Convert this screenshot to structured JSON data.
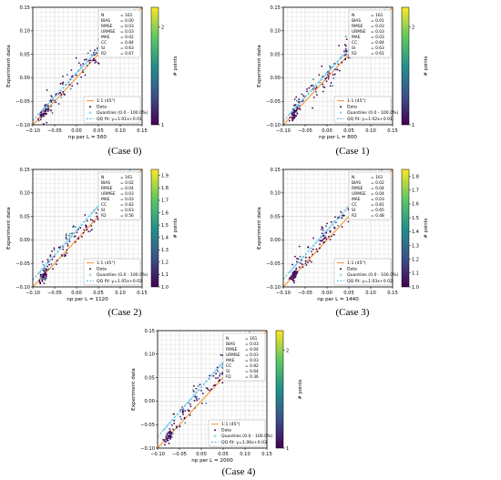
{
  "chart_data": [
    {
      "type": "scatter",
      "caption": "(Case 0)",
      "xlabel": "np per L = 560",
      "ylabel": "Experiment data",
      "colorbar_label": "# points",
      "xlim": [
        -0.1,
        0.15
      ],
      "ylim": [
        -0.1,
        0.15
      ],
      "xticks": [
        "−0.10",
        "−0.05",
        "0.00",
        "0.05",
        "0.10",
        "0.15"
      ],
      "yticks": [
        "−0.10",
        "−0.05",
        "0.00",
        "0.05",
        "0.10",
        "0.15"
      ],
      "colorbar_ticks": [
        "1",
        "2"
      ],
      "colorbar_range": [
        1,
        2.2
      ],
      "grid": true,
      "stats_labels": [
        "N",
        "BIAS",
        "RMSE",
        "URMSE",
        "MAE",
        "CC",
        "SI",
        "R2"
      ],
      "stats_values": [
        "= 161",
        "= 0.00",
        "= 0.03",
        "= 0.03",
        "= 0.02",
        "= 0.84",
        "= 0.63",
        "= 0.67"
      ],
      "legend": [
        "1:1 (45°)",
        "Data",
        "Quantiles (0.0 - 100.0%)",
        "QQ fit: y=1.01x+0.01"
      ],
      "qq_fit": {
        "slope": 1.01,
        "intercept": 0.01
      }
    },
    {
      "type": "scatter",
      "caption": "(Case 1)",
      "xlabel": "np per L = 800",
      "ylabel": "Experiment data",
      "colorbar_label": "# points",
      "xlim": [
        -0.1,
        0.15
      ],
      "ylim": [
        -0.1,
        0.15
      ],
      "xticks": [
        "−0.10",
        "−0.05",
        "0.00",
        "0.05",
        "0.10",
        "0.15"
      ],
      "yticks": [
        "−0.10",
        "−0.05",
        "0.00",
        "0.05",
        "0.10",
        "0.15"
      ],
      "colorbar_ticks": [
        "1",
        "2"
      ],
      "colorbar_range": [
        1,
        2.2
      ],
      "grid": true,
      "stats_labels": [
        "N",
        "BIAS",
        "RMSE",
        "URMSE",
        "MAE",
        "CC",
        "SI",
        "R2"
      ],
      "stats_values": [
        "= 161",
        "= 0.01",
        "= 0.03",
        "= 0.03",
        "= 0.03",
        "= 0.84",
        "= 0.63",
        "= 0.61"
      ],
      "legend": [
        "1:1 (45°)",
        "Data",
        "Quantiles (0.0 - 100.0%)",
        "QQ fit: y=1.02x+0.01"
      ],
      "qq_fit": {
        "slope": 1.02,
        "intercept": 0.01
      }
    },
    {
      "type": "scatter",
      "caption": "(Case 2)",
      "xlabel": "np per L = 1120",
      "ylabel": "Experiment data",
      "colorbar_label": "# points",
      "xlim": [
        -0.1,
        0.15
      ],
      "ylim": [
        -0.1,
        0.15
      ],
      "xticks": [
        "−0.10",
        "−0.05",
        "0.00",
        "0.05",
        "0.10",
        "0.15"
      ],
      "yticks": [
        "−0.10",
        "−0.05",
        "0.00",
        "0.05",
        "0.10",
        "0.15"
      ],
      "colorbar_ticks": [
        "1.0",
        "1.1",
        "1.2",
        "1.3",
        "1.4",
        "1.5",
        "1.6",
        "1.7",
        "1.8",
        "1.9"
      ],
      "colorbar_range": [
        1,
        1.95
      ],
      "grid": true,
      "stats_labels": [
        "N",
        "BIAS",
        "RMSE",
        "URMSE",
        "MAE",
        "CC",
        "SI",
        "R2"
      ],
      "stats_values": [
        "= 161",
        "= 0.02",
        "= 0.04",
        "= 0.03",
        "= 0.03",
        "= 0.83",
        "= 0.63",
        "= 0.56"
      ],
      "legend": [
        "1:1 (45°)",
        "Data",
        "Quantiles (0.0 - 100.0%)",
        "QQ fit: y=1.05x+0.02"
      ],
      "qq_fit": {
        "slope": 1.05,
        "intercept": 0.02
      }
    },
    {
      "type": "scatter",
      "caption": "(Case 3)",
      "xlabel": "np per L = 1440",
      "ylabel": "Experiment data",
      "colorbar_label": "# points",
      "xlim": [
        -0.1,
        0.15
      ],
      "ylim": [
        -0.1,
        0.15
      ],
      "xticks": [
        "−0.10",
        "−0.05",
        "0.00",
        "0.05",
        "0.10",
        "0.15"
      ],
      "yticks": [
        "−0.10",
        "−0.05",
        "0.00",
        "0.05",
        "0.10",
        "0.15"
      ],
      "colorbar_ticks": [
        "1.0",
        "1.1",
        "1.2",
        "1.3",
        "1.4",
        "1.5",
        "1.6",
        "1.7",
        "1.8"
      ],
      "colorbar_range": [
        1,
        1.85
      ],
      "grid": true,
      "stats_labels": [
        "N",
        "BIAS",
        "RMSE",
        "URMSE",
        "MAE",
        "CC",
        "SI",
        "R2"
      ],
      "stats_values": [
        "= 161",
        "= 0.02",
        "= 0.04",
        "= 0.04",
        "= 0.03",
        "= 0.81",
        "= 0.65",
        "= 0.48"
      ],
      "legend": [
        "1:1 (45°)",
        "Data",
        "Quantiles (0.0 - 100.0%)",
        "QQ fit: y=1.03x+0.02"
      ],
      "qq_fit": {
        "slope": 1.03,
        "intercept": 0.02
      }
    },
    {
      "type": "scatter",
      "caption": "(Case 4)",
      "xlabel": "np per L = 2000",
      "ylabel": "Experiment data",
      "colorbar_label": "# points",
      "xlim": [
        -0.1,
        0.15
      ],
      "ylim": [
        -0.1,
        0.15
      ],
      "xticks": [
        "−0.10",
        "−0.05",
        "0.00",
        "0.05",
        "0.10",
        "0.15"
      ],
      "yticks": [
        "−0.10",
        "−0.05",
        "0.00",
        "0.05",
        "0.10",
        "0.15"
      ],
      "colorbar_ticks": [
        "1",
        "2"
      ],
      "colorbar_range": [
        1,
        2.2
      ],
      "grid": true,
      "stats_labels": [
        "N",
        "BIAS",
        "RMSE",
        "URMSE",
        "MAE",
        "CC",
        "SI",
        "R2"
      ],
      "stats_values": [
        "= 161",
        "= 0.03",
        "= 0.04",
        "= 0.03",
        "= 0.03",
        "= 0.82",
        "= 0.64",
        "= 0.36"
      ],
      "legend": [
        "1:1 (45°)",
        "Data",
        "Quantiles (0.0 - 100.0%)",
        "QQ fit: y=1.06x+0.03"
      ],
      "qq_fit": {
        "slope": 1.06,
        "intercept": 0.03
      }
    }
  ],
  "colors": {
    "one_to_one": "#f5a050",
    "quantiles": "#7fd0ee",
    "qq_fit": "#4fb4d9",
    "grid": "#d9d9d9",
    "viridis": [
      "#440154",
      "#3b528b",
      "#21918c",
      "#5ec962",
      "#fde725"
    ]
  }
}
